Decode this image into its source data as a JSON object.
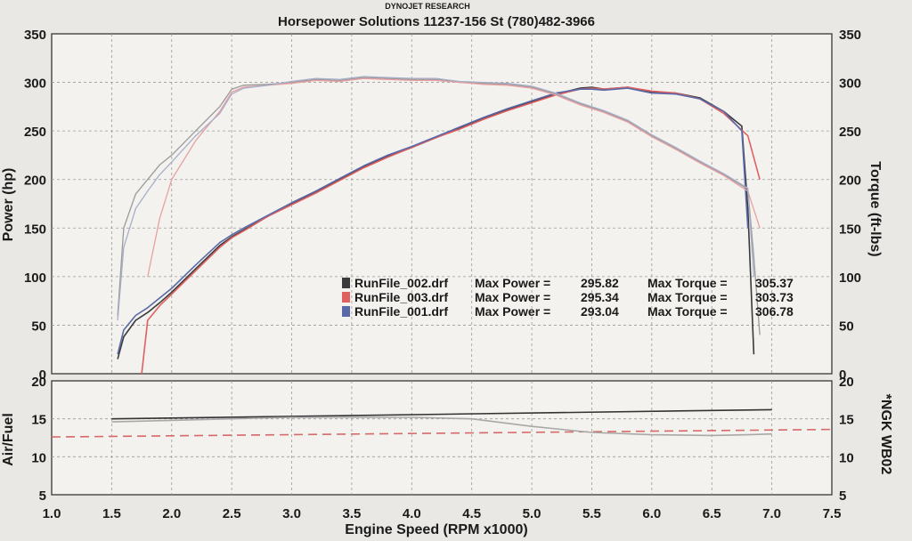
{
  "header": {
    "brand": "DYNOJET RESEARCH",
    "title": "Horsepower Solutions 11237-156 St (780)482-3966"
  },
  "chart_data": [
    {
      "type": "line",
      "panel": "top",
      "xlabel": "Engine Speed (RPM x1000)",
      "ylabel_left": "Power (hp)",
      "ylabel_right": "Torque (ft-lbs)",
      "xlim": [
        1.0,
        7.5
      ],
      "ylim_left": [
        0,
        350
      ],
      "ylim_right": [
        0,
        350
      ],
      "xticks": [
        "1.0",
        "1.5",
        "2.0",
        "2.5",
        "3.0",
        "3.5",
        "4.0",
        "4.5",
        "5.0",
        "5.5",
        "6.0",
        "6.5",
        "7.0",
        "7.5"
      ],
      "yticks_left": [
        "0",
        "50",
        "100",
        "150",
        "200",
        "250",
        "300",
        "350"
      ],
      "yticks_right": [
        "0",
        "50",
        "100",
        "150",
        "200",
        "250",
        "300",
        "350"
      ],
      "grid": true,
      "legend_position": "center-right",
      "legend": [
        {
          "file": "RunFile_002.drf",
          "power_label": "Max Power =",
          "power": "295.82",
          "torque_label": "Max Torque =",
          "torque": "305.37",
          "color": "#3a3a3a"
        },
        {
          "file": "RunFile_003.drf",
          "power_label": "Max Power =",
          "power": "295.34",
          "torque_label": "Max Torque =",
          "torque": "303.73",
          "color": "#e06060"
        },
        {
          "file": "RunFile_001.drf",
          "power_label": "Max Power =",
          "power": "293.04",
          "torque_label": "Max Torque =",
          "torque": "306.78",
          "color": "#5a6aa8"
        }
      ],
      "series": [
        {
          "kind": "power",
          "run": "RunFile_002.drf",
          "color": "#3a3a3a",
          "x": [
            1.55,
            1.6,
            1.7,
            1.8,
            1.9,
            2.0,
            2.2,
            2.4,
            2.5,
            2.6,
            2.8,
            3.0,
            3.2,
            3.4,
            3.6,
            3.8,
            4.0,
            4.2,
            4.4,
            4.6,
            4.8,
            5.0,
            5.2,
            5.4,
            5.5,
            5.6,
            5.8,
            6.0,
            6.2,
            6.4,
            6.6,
            6.75,
            6.8,
            6.85
          ],
          "y": [
            15,
            38,
            55,
            63,
            73,
            84,
            108,
            132,
            141,
            148,
            162,
            175,
            187,
            200,
            213,
            224,
            233,
            243,
            253,
            263,
            272,
            280,
            288,
            294,
            295,
            293,
            295,
            290,
            289,
            284,
            270,
            255,
            170,
            20
          ]
        },
        {
          "kind": "power",
          "run": "RunFile_003.drf",
          "color": "#e06060",
          "x": [
            1.75,
            1.8,
            1.9,
            2.0,
            2.2,
            2.4,
            2.5,
            2.6,
            2.8,
            3.0,
            3.2,
            3.4,
            3.6,
            3.8,
            4.0,
            4.2,
            4.4,
            4.6,
            4.8,
            5.0,
            5.2,
            5.4,
            5.5,
            5.6,
            5.8,
            6.0,
            6.2,
            6.4,
            6.6,
            6.8,
            6.9
          ],
          "y": [
            0,
            55,
            70,
            82,
            106,
            130,
            140,
            147,
            162,
            174,
            186,
            199,
            212,
            223,
            233,
            243,
            252,
            262,
            271,
            279,
            287,
            293,
            294,
            293,
            295,
            291,
            289,
            283,
            268,
            245,
            200
          ]
        },
        {
          "kind": "power",
          "run": "RunFile_001.drf",
          "color": "#5a6aa8",
          "x": [
            1.55,
            1.6,
            1.7,
            1.8,
            1.9,
            2.0,
            2.2,
            2.4,
            2.5,
            2.6,
            2.8,
            3.0,
            3.2,
            3.4,
            3.6,
            3.8,
            4.0,
            4.2,
            4.4,
            4.6,
            4.8,
            5.0,
            5.2,
            5.4,
            5.5,
            5.6,
            5.8,
            6.0,
            6.2,
            6.4,
            6.6,
            6.75,
            6.8
          ],
          "y": [
            20,
            45,
            60,
            68,
            78,
            88,
            112,
            135,
            143,
            150,
            163,
            176,
            188,
            201,
            214,
            225,
            234,
            244,
            254,
            264,
            273,
            281,
            289,
            293,
            293,
            292,
            294,
            289,
            288,
            283,
            270,
            250,
            150
          ]
        },
        {
          "kind": "torque",
          "run": "RunFile_002.drf",
          "color": "#9a9a9a",
          "x": [
            1.55,
            1.6,
            1.7,
            1.8,
            1.9,
            2.0,
            2.2,
            2.4,
            2.5,
            2.6,
            2.8,
            3.0,
            3.2,
            3.4,
            3.6,
            3.8,
            4.0,
            4.2,
            4.4,
            4.6,
            4.8,
            5.0,
            5.2,
            5.4,
            5.6,
            5.8,
            6.0,
            6.2,
            6.4,
            6.6,
            6.8,
            6.85,
            6.9
          ],
          "y": [
            60,
            150,
            185,
            200,
            215,
            225,
            250,
            275,
            293,
            297,
            298,
            300,
            303,
            302,
            305,
            304,
            303,
            303,
            300,
            299,
            298,
            295,
            288,
            278,
            270,
            260,
            245,
            232,
            218,
            205,
            190,
            120,
            40
          ]
        },
        {
          "kind": "torque",
          "run": "RunFile_003.drf",
          "color": "#e8a0a0",
          "x": [
            1.8,
            1.9,
            2.0,
            2.2,
            2.4,
            2.5,
            2.6,
            2.8,
            3.0,
            3.2,
            3.4,
            3.6,
            3.8,
            4.0,
            4.2,
            4.4,
            4.6,
            4.8,
            5.0,
            5.2,
            5.4,
            5.6,
            5.8,
            6.0,
            6.2,
            6.4,
            6.6,
            6.8,
            6.9
          ],
          "y": [
            100,
            160,
            200,
            240,
            270,
            290,
            295,
            297,
            299,
            302,
            301,
            304,
            303,
            302,
            302,
            300,
            298,
            297,
            294,
            287,
            277,
            269,
            259,
            244,
            231,
            217,
            204,
            188,
            150
          ]
        },
        {
          "kind": "torque",
          "run": "RunFile_001.drf",
          "color": "#a8aec8",
          "x": [
            1.55,
            1.6,
            1.7,
            1.8,
            1.9,
            2.0,
            2.2,
            2.4,
            2.5,
            2.6,
            2.8,
            3.0,
            3.2,
            3.4,
            3.6,
            3.8,
            4.0,
            4.2,
            4.4,
            4.6,
            4.8,
            5.0,
            5.2,
            5.4,
            5.6,
            5.8,
            6.0,
            6.2,
            6.4,
            6.6,
            6.8,
            6.85
          ],
          "y": [
            55,
            130,
            170,
            188,
            205,
            218,
            245,
            268,
            288,
            294,
            297,
            301,
            304,
            303,
            306,
            305,
            304,
            304,
            301,
            300,
            299,
            296,
            289,
            279,
            271,
            261,
            246,
            233,
            219,
            206,
            191,
            100
          ]
        }
      ]
    },
    {
      "type": "line",
      "panel": "bottom",
      "ylabel_left": "Air/Fuel",
      "ylabel_right": "*NGK WB02",
      "xlim": [
        1.0,
        7.5
      ],
      "ylim_left": [
        5,
        20
      ],
      "ylim_right": [
        5,
        20
      ],
      "yticks_left": [
        "5",
        "10",
        "15",
        "20"
      ],
      "yticks_right": [
        "5",
        "10",
        "15",
        "20"
      ],
      "grid": true,
      "series": [
        {
          "name": "target",
          "color": "#333333",
          "x": [
            1.5,
            7.0
          ],
          "y": [
            15.0,
            16.2
          ]
        },
        {
          "name": "dashed reference",
          "color": "#d46a6a",
          "dashed": true,
          "x": [
            1.0,
            7.5
          ],
          "y": [
            12.6,
            13.6
          ]
        },
        {
          "name": "air/fuel",
          "color": "#a8a8a8",
          "x": [
            1.5,
            2.0,
            3.0,
            4.0,
            4.5,
            5.0,
            5.5,
            6.0,
            6.5,
            6.8,
            7.0
          ],
          "y": [
            14.6,
            14.8,
            15.2,
            15.2,
            15.0,
            14.0,
            13.2,
            12.9,
            12.8,
            12.9,
            13.0
          ]
        }
      ]
    }
  ]
}
